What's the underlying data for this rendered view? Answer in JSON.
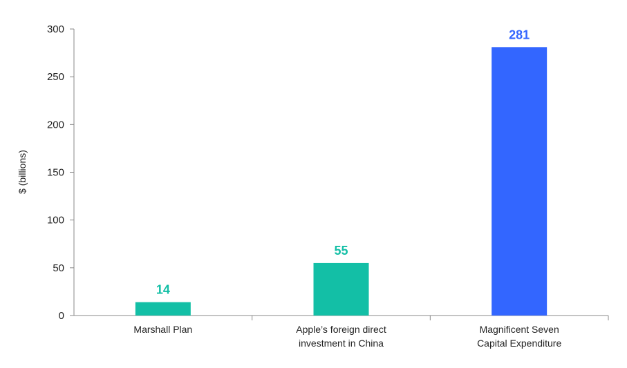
{
  "chart_data": {
    "type": "bar",
    "title": "",
    "xlabel": "",
    "ylabel": "$ (billions)",
    "ylim": [
      0,
      300
    ],
    "yticks": [
      0,
      50,
      100,
      150,
      200,
      250,
      300
    ],
    "grid": false,
    "legend": "none",
    "categories": [
      [
        "Marshall Plan"
      ],
      [
        "Apple’s foreign direct",
        "investment in China"
      ],
      [
        "Magnificent Seven",
        "Capital Expenditure"
      ]
    ],
    "values": [
      14,
      55,
      281
    ],
    "value_labels": [
      "14",
      "55",
      "281"
    ],
    "bar_colors": [
      "#13bfa6",
      "#13bfa6",
      "#3366ff"
    ],
    "axis_color": "#888888"
  }
}
